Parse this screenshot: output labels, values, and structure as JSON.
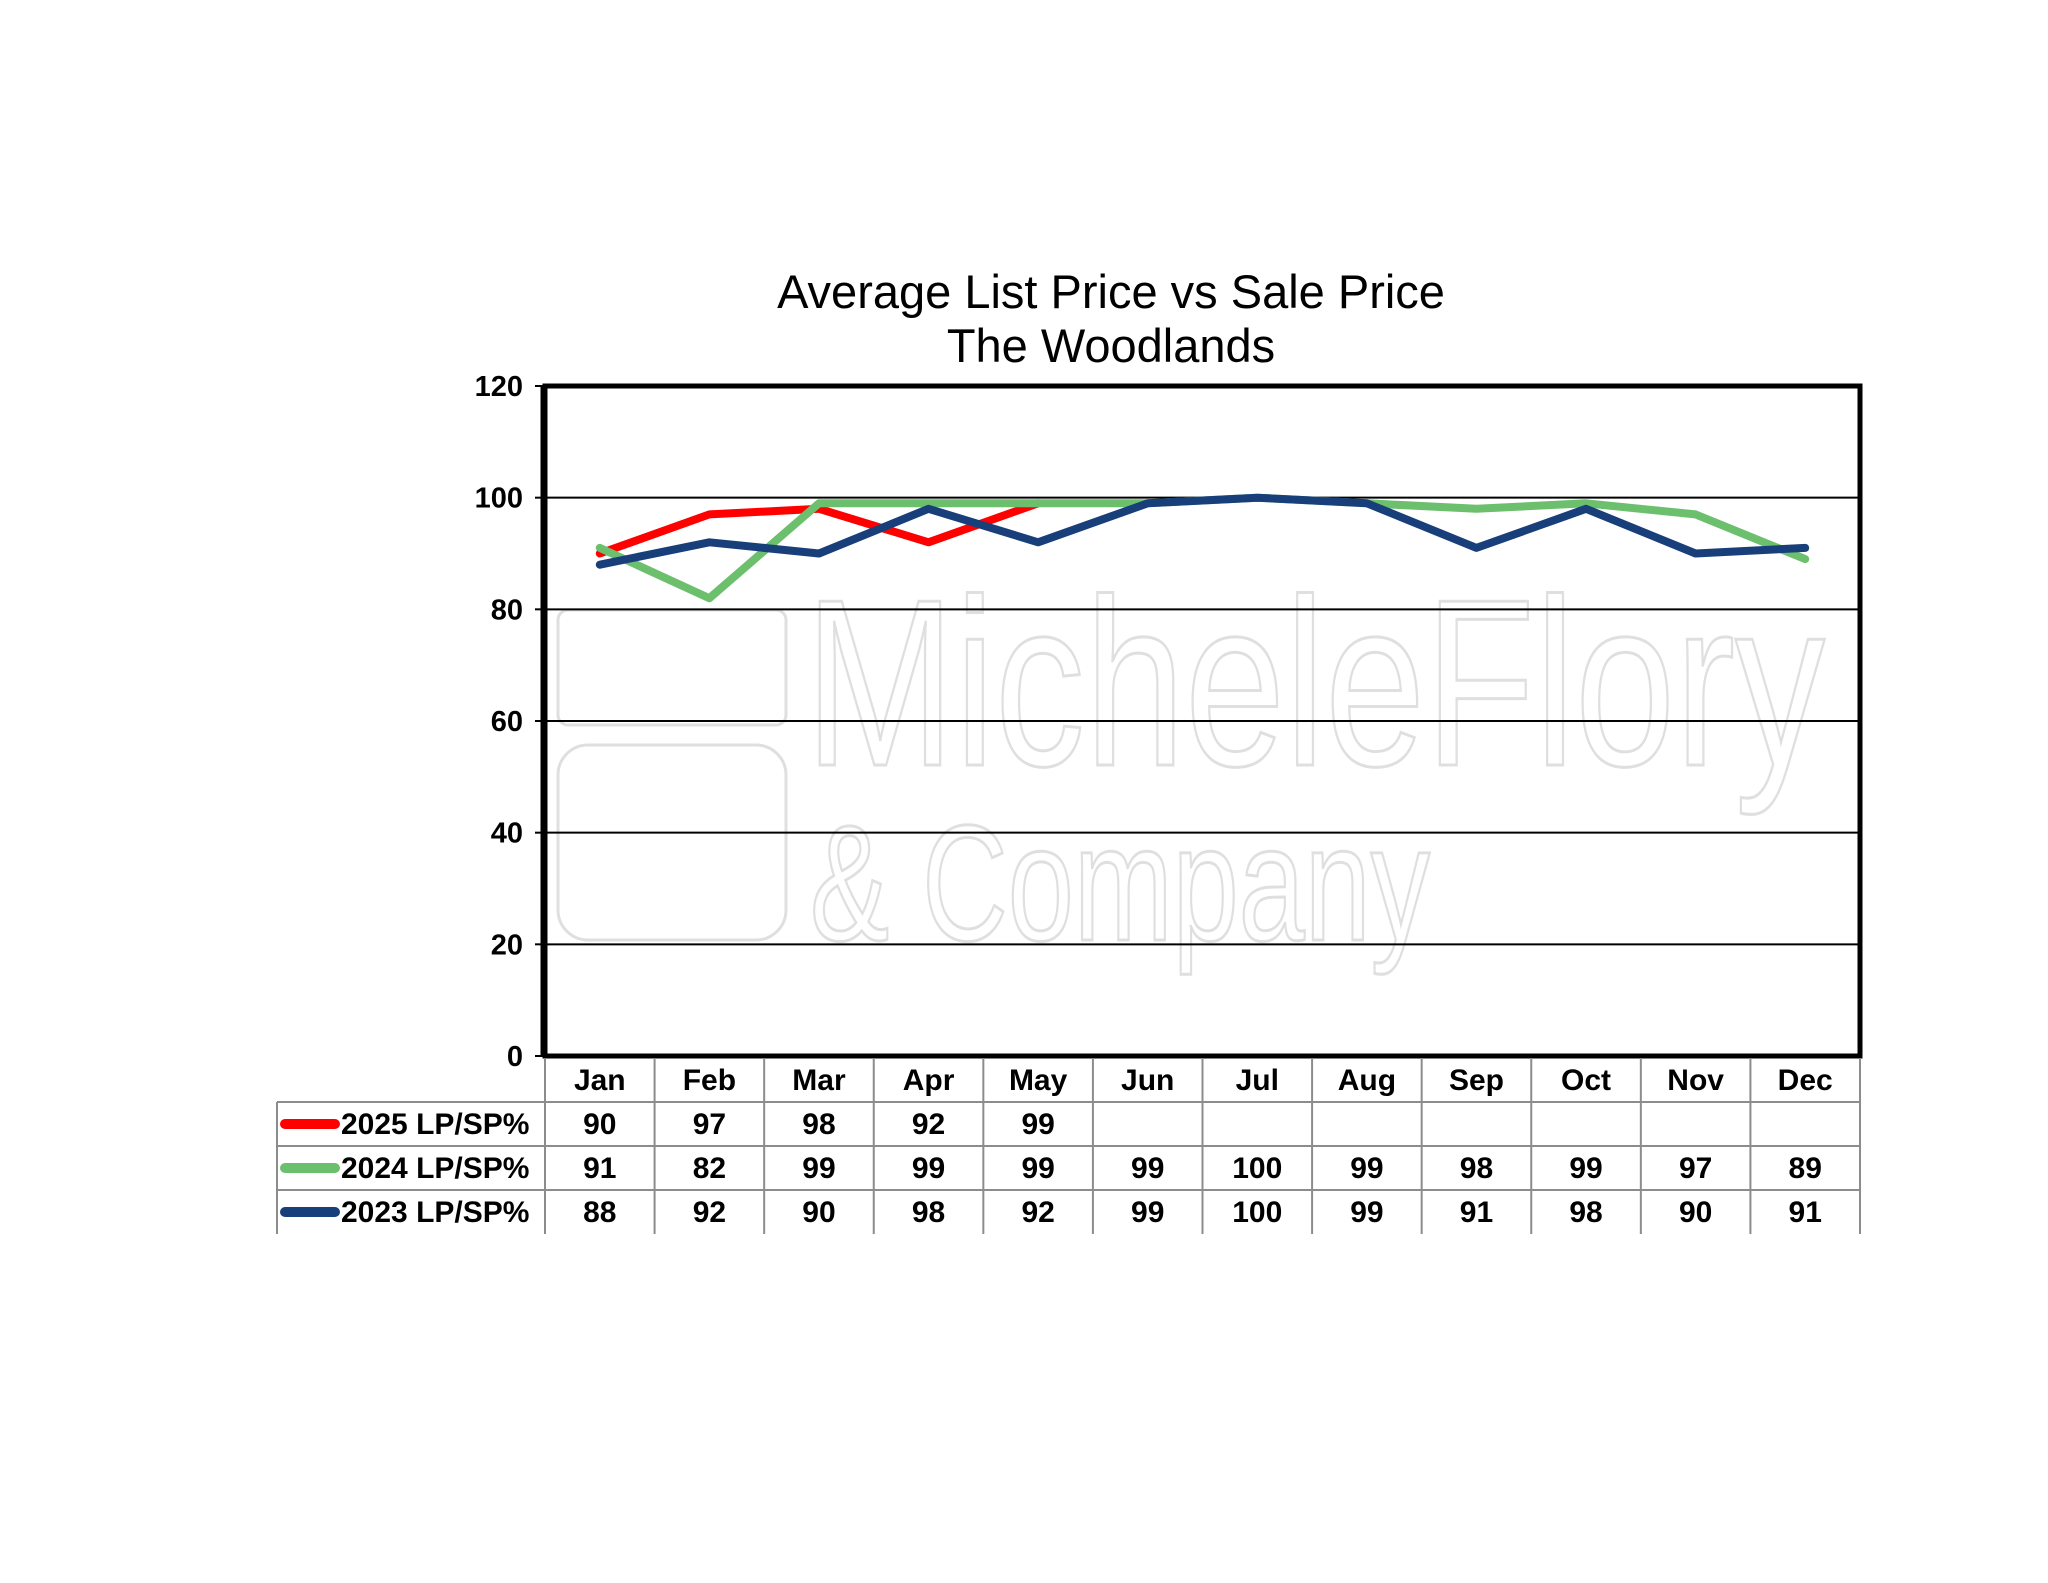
{
  "chart_data": {
    "type": "line",
    "title": "Average List Price vs Sale Price",
    "subtitle": "The Woodlands",
    "xlabel": "",
    "ylabel": "",
    "categories": [
      "Jan",
      "Feb",
      "Mar",
      "Apr",
      "May",
      "Jun",
      "Jul",
      "Aug",
      "Sep",
      "Oct",
      "Nov",
      "Dec"
    ],
    "ylim": [
      0,
      120
    ],
    "yticks": [
      "0",
      "20",
      "40",
      "60",
      "80",
      "100",
      "120"
    ],
    "grid": true,
    "legend": "data-table-left",
    "series": [
      {
        "name": "2025 LP/SP%",
        "color": "#ff0000",
        "values": [
          90,
          97,
          98,
          92,
          99,
          null,
          null,
          null,
          null,
          null,
          null,
          null
        ]
      },
      {
        "name": "2024 LP/SP%",
        "color": "#6cbf6c",
        "values": [
          91,
          82,
          99,
          99,
          99,
          99,
          100,
          99,
          98,
          99,
          97,
          89
        ]
      },
      {
        "name": "2023 LP/SP%",
        "color": "#183f7a",
        "values": [
          88,
          92,
          90,
          98,
          92,
          99,
          100,
          99,
          91,
          98,
          90,
          91
        ]
      }
    ]
  },
  "watermark": {
    "line1": "MicheleFlory",
    "line2": "& Company"
  }
}
